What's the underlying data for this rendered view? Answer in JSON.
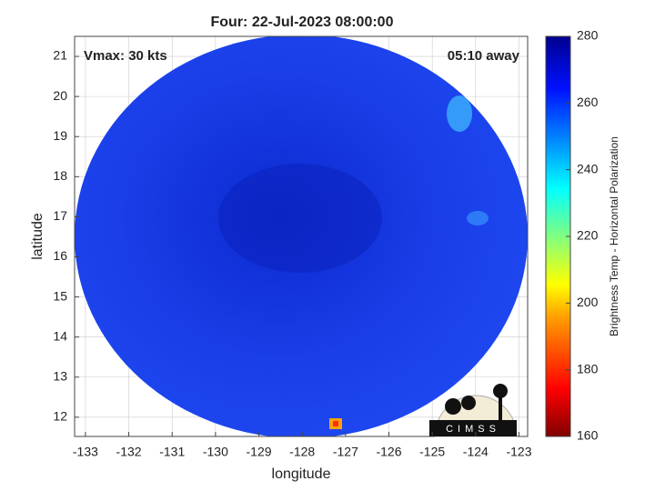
{
  "chart_data": {
    "type": "image",
    "title": "Four: 22-Jul-2023 08:00:00",
    "annotations": [
      "Vmax: 30 kts",
      "05:10 away"
    ],
    "xlabel": "longitude",
    "ylabel": "latitude",
    "xlim": [
      -133.25,
      -122.8
    ],
    "xticks": [
      -133,
      -132,
      -131,
      -130,
      -129,
      -128,
      -127,
      -126,
      -125,
      -124,
      -123
    ],
    "ylim": [
      11.52,
      21.5
    ],
    "yticks": [
      12,
      13,
      14,
      15,
      16,
      17,
      18,
      19,
      20,
      21
    ],
    "grid": true,
    "colorbar": {
      "label": "Brightness Temp - Horizontal Polarization",
      "lim": [
        160,
        280
      ],
      "ticks": [
        160,
        180,
        200,
        220,
        240,
        260,
        280
      ]
    },
    "logo": "CIMSS"
  }
}
